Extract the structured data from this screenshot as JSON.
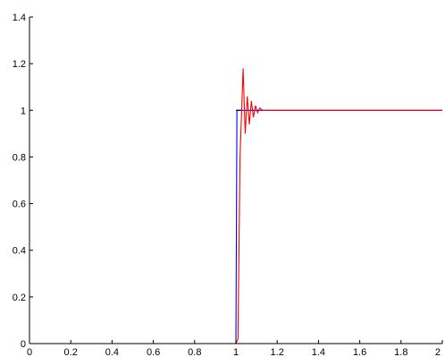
{
  "chart_data": {
    "type": "line",
    "title": "",
    "xlabel": "",
    "ylabel": "",
    "xlim": [
      0,
      2
    ],
    "ylim": [
      0,
      1.4
    ],
    "grid": false,
    "legend": "none",
    "x_ticks": [
      "0",
      "0.2",
      "0.4",
      "0.6",
      "0.8",
      "1",
      "1.2",
      "1.4",
      "1.6",
      "1.8",
      "2"
    ],
    "y_ticks": [
      "0",
      "0.2",
      "0.4",
      "0.6",
      "0.8",
      "1",
      "1.2",
      "1.4"
    ],
    "series": [
      {
        "color": "#0000ff",
        "points": [
          [
            0,
            0
          ],
          [
            1.0,
            0
          ],
          [
            1.005,
            1
          ],
          [
            2.0,
            1
          ]
        ]
      },
      {
        "color": "#000000",
        "points": [
          [
            1.0,
            1
          ],
          [
            1.03,
            1
          ]
        ]
      },
      {
        "color": "#ff0000",
        "points": [
          [
            0,
            0
          ],
          [
            1.0,
            0
          ],
          [
            1.01,
            0.02
          ],
          [
            1.02,
            0.8
          ],
          [
            1.035,
            1.18
          ],
          [
            1.045,
            0.9
          ],
          [
            1.055,
            1.06
          ],
          [
            1.065,
            0.94
          ],
          [
            1.075,
            1.04
          ],
          [
            1.085,
            0.97
          ],
          [
            1.095,
            1.02
          ],
          [
            1.105,
            0.99
          ],
          [
            1.115,
            1.01
          ],
          [
            1.13,
            1.0
          ],
          [
            1.2,
            1.0
          ],
          [
            2.0,
            1.0
          ]
        ]
      }
    ]
  }
}
